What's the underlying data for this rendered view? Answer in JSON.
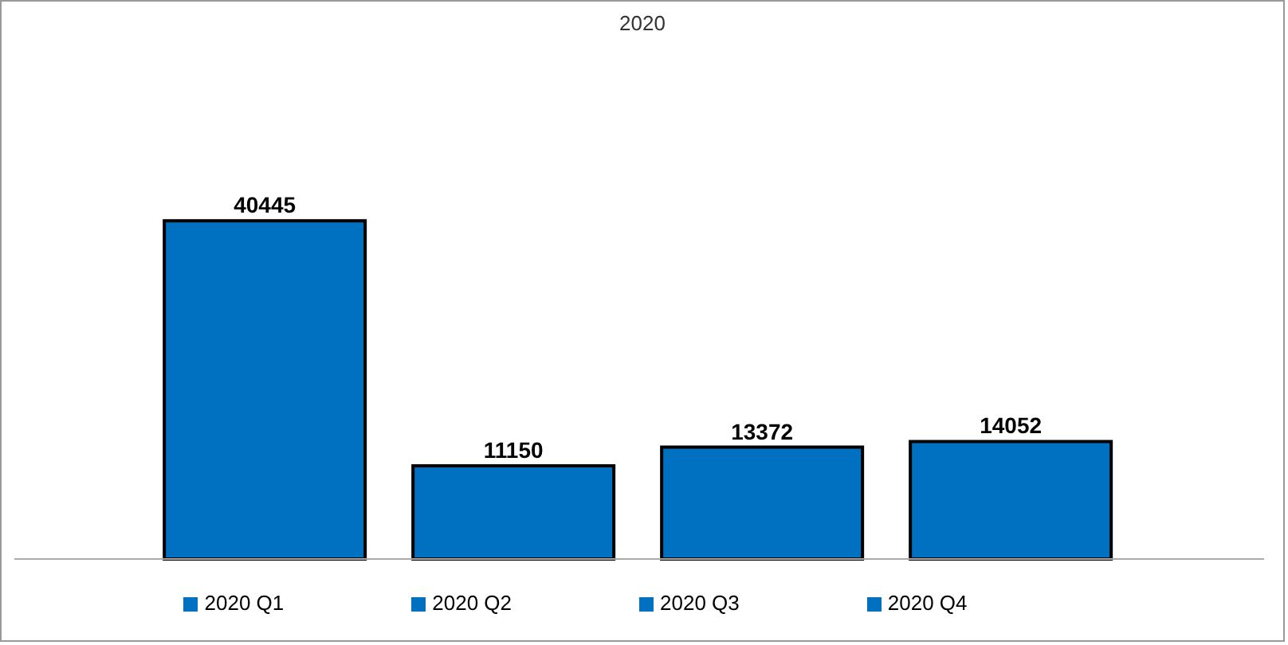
{
  "chart_data": {
    "type": "bar",
    "title": "2020",
    "categories": [
      null
    ],
    "series": [
      {
        "name": "2020 Q1",
        "color": "#0070c0",
        "values": [
          40445
        ]
      },
      {
        "name": "2020 Q2",
        "color": "#0070c0",
        "values": [
          11150
        ]
      },
      {
        "name": "2020 Q3",
        "color": "#0070c0",
        "values": [
          13372
        ]
      },
      {
        "name": "2020 Q4",
        "color": "#0070c0",
        "values": [
          14052
        ]
      }
    ],
    "data_labels": true,
    "legend": "bottom",
    "grid": false
  }
}
